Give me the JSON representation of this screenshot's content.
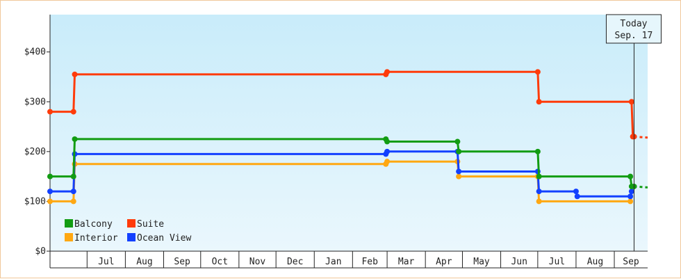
{
  "chart_data": {
    "type": "line",
    "step": true,
    "x_axis": {
      "type": "date",
      "range": [
        "2013-06-01",
        "2014-09-28"
      ],
      "tick_labels": [
        "Jul",
        "Aug",
        "Sep",
        "Oct",
        "Nov",
        "Dec",
        "Jan",
        "Feb",
        "Mar",
        "Apr",
        "May",
        "Jun",
        "Jul",
        "Aug",
        "Sep"
      ],
      "tick_months": [
        "2013-07",
        "2013-08",
        "2013-09",
        "2013-10",
        "2013-11",
        "2013-12",
        "2014-01",
        "2014-02",
        "2014-03",
        "2014-04",
        "2014-05",
        "2014-06",
        "2014-07",
        "2014-08",
        "2014-09"
      ]
    },
    "y_axis": {
      "range": [
        0,
        475
      ],
      "ticks": [
        0,
        100,
        200,
        300,
        400
      ],
      "tick_labels": [
        "$0",
        "$100",
        "$200",
        "$300",
        "$400"
      ]
    },
    "today": {
      "date": "2014-09-17",
      "line1": "Today",
      "line2": "Sep. 17"
    },
    "background": {
      "top": "#c9ecfa",
      "bottom": "#eaf7fd"
    },
    "legend": {
      "placement": "bottom-left"
    },
    "series": [
      {
        "name": "Balcony",
        "color": "#129c12",
        "points": [
          [
            "2013-06-01",
            150
          ],
          [
            "2013-06-20",
            150
          ],
          [
            "2013-06-21",
            225
          ],
          [
            "2014-02-28",
            225
          ],
          [
            "2014-03-01",
            220
          ],
          [
            "2014-04-27",
            220
          ],
          [
            "2014-04-28",
            200
          ],
          [
            "2014-07-01",
            200
          ],
          [
            "2014-07-02",
            150
          ],
          [
            "2014-09-14",
            150
          ],
          [
            "2014-09-15",
            130
          ],
          [
            "2014-09-17",
            130
          ]
        ],
        "projection": [
          [
            "2014-09-17",
            130
          ],
          [
            "2014-09-28",
            128
          ]
        ]
      },
      {
        "name": "Suite",
        "color": "#ff3b0a",
        "points": [
          [
            "2013-06-01",
            280
          ],
          [
            "2013-06-20",
            280
          ],
          [
            "2013-06-21",
            355
          ],
          [
            "2014-02-28",
            355
          ],
          [
            "2014-03-01",
            360
          ],
          [
            "2014-07-01",
            360
          ],
          [
            "2014-07-02",
            300
          ],
          [
            "2014-09-15",
            300
          ],
          [
            "2014-09-16",
            230
          ],
          [
            "2014-09-17",
            230
          ]
        ],
        "projection": [
          [
            "2014-09-17",
            230
          ],
          [
            "2014-09-28",
            228
          ]
        ]
      },
      {
        "name": "Interior",
        "color": "#ffa812",
        "points": [
          [
            "2013-06-01",
            100
          ],
          [
            "2013-06-20",
            100
          ],
          [
            "2013-06-21",
            175
          ],
          [
            "2014-02-28",
            175
          ],
          [
            "2014-03-01",
            180
          ],
          [
            "2014-04-27",
            180
          ],
          [
            "2014-04-28",
            150
          ],
          [
            "2014-07-01",
            150
          ],
          [
            "2014-07-02",
            100
          ],
          [
            "2014-09-14",
            100
          ]
        ],
        "projection": []
      },
      {
        "name": "Ocean View",
        "color": "#1240ff",
        "points": [
          [
            "2013-06-01",
            120
          ],
          [
            "2013-06-20",
            120
          ],
          [
            "2013-06-21",
            195
          ],
          [
            "2014-02-28",
            195
          ],
          [
            "2014-03-01",
            200
          ],
          [
            "2014-04-27",
            200
          ],
          [
            "2014-04-28",
            160
          ],
          [
            "2014-07-01",
            160
          ],
          [
            "2014-07-02",
            120
          ],
          [
            "2014-08-01",
            120
          ],
          [
            "2014-08-02",
            110
          ],
          [
            "2014-09-14",
            110
          ],
          [
            "2014-09-15",
            120
          ]
        ],
        "projection": []
      }
    ]
  }
}
